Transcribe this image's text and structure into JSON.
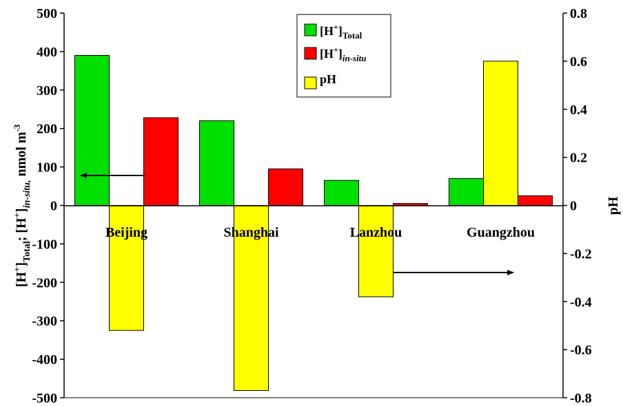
{
  "chart_data": {
    "type": "bar",
    "categories": [
      "Beijing",
      "Shanghai",
      "Lanzhou",
      "Guangzhou"
    ],
    "left_axis": {
      "ylim": [
        -500,
        500
      ],
      "ticks": [
        500,
        400,
        300,
        200,
        100,
        0,
        -100,
        -200,
        -300,
        -400,
        -500
      ],
      "label": {
        "main1": "[H",
        "sup1": "+",
        "bracket1": "]",
        "sub1": "Total",
        "sep": "; [H",
        "sup2": "+",
        "bracket2": "]",
        "sub2": "in-situ,",
        "unit": " nmol m",
        "unit_sup": "-3"
      }
    },
    "right_axis": {
      "ylim": [
        -0.8,
        0.8
      ],
      "ticks": [
        0.8,
        0.6,
        0.4,
        0.2,
        0,
        -0.2,
        -0.4,
        -0.6,
        -0.8
      ],
      "label": "pH"
    },
    "series": [
      {
        "name": "[H+]Total",
        "axis": "left",
        "color": "#00e000",
        "values": [
          390,
          220,
          65,
          70
        ]
      },
      {
        "name": "pH",
        "axis": "right",
        "color": "#ffff00",
        "values": [
          -0.52,
          -0.77,
          -0.38,
          0.6
        ]
      },
      {
        "name": "[H+]in-situ",
        "axis": "left",
        "color": "#ff0000",
        "values": [
          228,
          95,
          5,
          25
        ]
      }
    ],
    "legend": {
      "placement": "top-center",
      "items": [
        {
          "base": "[H",
          "sup": "+",
          "close": "]",
          "sub": "Total",
          "italic_sub": false,
          "color": "#00e000"
        },
        {
          "base": "[H",
          "sup": "+",
          "close": "]",
          "sub": "in-situ",
          "italic_sub": true,
          "color": "#ff0000"
        },
        {
          "base": "pH",
          "sup": "",
          "close": "",
          "sub": "",
          "italic_sub": false,
          "color": "#ffff00"
        }
      ]
    },
    "annotations": [
      {
        "type": "arrow",
        "direction": "left",
        "points_to_axis": "left"
      },
      {
        "type": "arrow",
        "direction": "right",
        "points_to_axis": "right"
      }
    ],
    "grid": false
  }
}
